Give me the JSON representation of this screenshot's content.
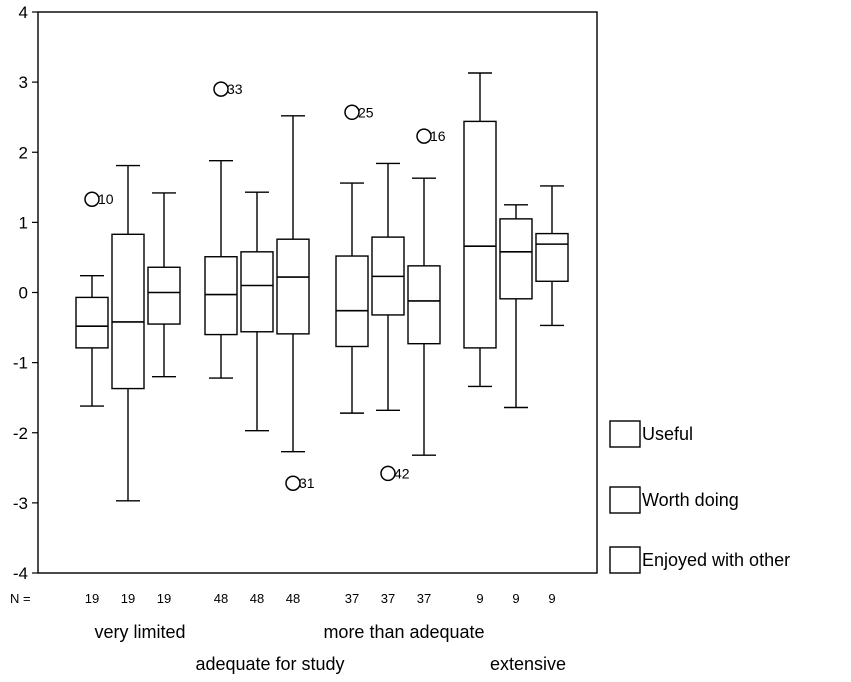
{
  "chart_data": {
    "type": "boxplot",
    "ylim": [
      -4,
      4
    ],
    "yticks": [
      "4",
      "3",
      "2",
      "1",
      "0",
      "-1",
      "-2",
      "-3",
      "-4"
    ],
    "n_prefix": "N =",
    "groups": [
      {
        "label": "very limited",
        "n": [
          "19",
          "19",
          "19"
        ]
      },
      {
        "label": "adequate for study",
        "n": [
          "48",
          "48",
          "48"
        ]
      },
      {
        "label": "more than adequate",
        "n": [
          "37",
          "37",
          "37"
        ]
      },
      {
        "label": "extensive",
        "n": [
          "9",
          "9",
          "9"
        ]
      }
    ],
    "series": [
      {
        "name": "Useful"
      },
      {
        "name": "Worth doing"
      },
      {
        "name": "Enjoyed with other"
      }
    ],
    "boxes": [
      {
        "group": 0,
        "series": 0,
        "min": -1.62,
        "q1": -0.79,
        "median": -0.48,
        "q3": -0.07,
        "max": 0.24
      },
      {
        "group": 0,
        "series": 1,
        "min": -2.97,
        "q1": -1.37,
        "median": -0.42,
        "q3": 0.83,
        "max": 1.81
      },
      {
        "group": 0,
        "series": 2,
        "min": -1.2,
        "q1": -0.45,
        "median": 0.0,
        "q3": 0.36,
        "max": 1.42
      },
      {
        "group": 1,
        "series": 0,
        "min": -1.22,
        "q1": -0.6,
        "median": -0.03,
        "q3": 0.51,
        "max": 1.88
      },
      {
        "group": 1,
        "series": 1,
        "min": -1.97,
        "q1": -0.56,
        "median": 0.1,
        "q3": 0.58,
        "max": 1.43
      },
      {
        "group": 1,
        "series": 2,
        "min": -2.27,
        "q1": -0.59,
        "median": 0.22,
        "q3": 0.76,
        "max": 2.52
      },
      {
        "group": 2,
        "series": 0,
        "min": -1.72,
        "q1": -0.77,
        "median": -0.26,
        "q3": 0.52,
        "max": 1.56
      },
      {
        "group": 2,
        "series": 1,
        "min": -1.68,
        "q1": -0.32,
        "median": 0.23,
        "q3": 0.79,
        "max": 1.84
      },
      {
        "group": 2,
        "series": 2,
        "min": -2.32,
        "q1": -0.73,
        "median": -0.12,
        "q3": 0.38,
        "max": 1.63
      },
      {
        "group": 3,
        "series": 0,
        "min": -1.34,
        "q1": -0.79,
        "median": 0.66,
        "q3": 2.44,
        "max": 3.13
      },
      {
        "group": 3,
        "series": 1,
        "min": -1.64,
        "q1": -0.09,
        "median": 0.58,
        "q3": 1.05,
        "max": 1.25
      },
      {
        "group": 3,
        "series": 2,
        "min": -0.47,
        "q1": 0.16,
        "median": 0.69,
        "q3": 0.84,
        "max": 1.52
      }
    ],
    "outliers": [
      {
        "group": 0,
        "series": 0,
        "value": 1.33,
        "label": "10"
      },
      {
        "group": 1,
        "series": 0,
        "value": 2.9,
        "label": "33"
      },
      {
        "group": 1,
        "series": 2,
        "value": -2.72,
        "label": "31"
      },
      {
        "group": 2,
        "series": 0,
        "value": 2.57,
        "label": "25"
      },
      {
        "group": 2,
        "series": 1,
        "value": -2.58,
        "label": "42"
      },
      {
        "group": 2,
        "series": 2,
        "value": 2.23,
        "label": "16"
      }
    ],
    "grid": false,
    "legend_position": "right"
  }
}
